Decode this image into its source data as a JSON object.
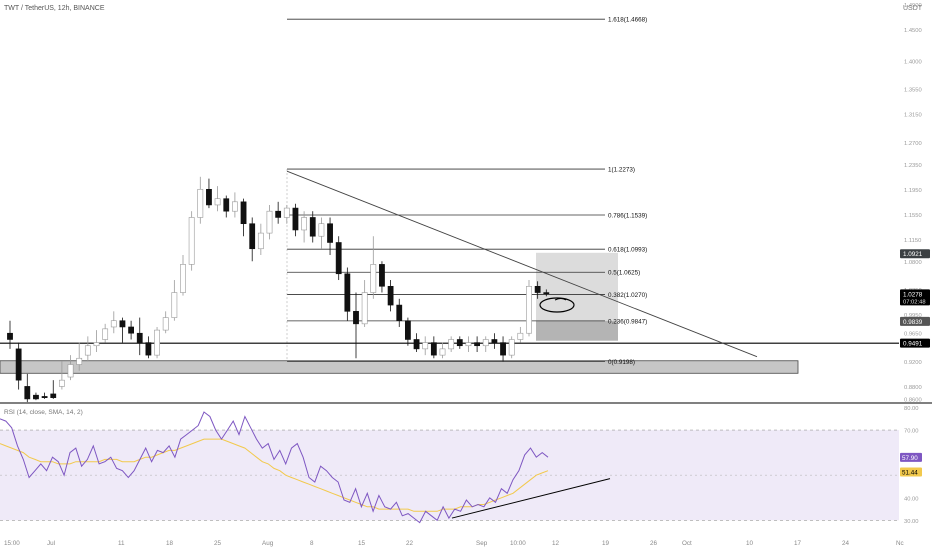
{
  "header": {
    "symbol_line": "TWT / TetherUS, 12h, BINANCE",
    "currency": "USDT"
  },
  "rsi_header": "RSI (14, close, SMA, 14, 2)",
  "time_axis": [
    "15:00",
    "Jul",
    "11",
    "18",
    "25",
    "Aug",
    "8",
    "15",
    "22",
    "Sep",
    "10:00",
    "12",
    "19",
    "26",
    "Oct",
    "10",
    "17",
    "24",
    "Nc"
  ],
  "chart_data": [
    {
      "type": "candlestick",
      "title": "TWT / TetherUS, 12h, BINANCE",
      "ylabel": "USDT",
      "ylim": [
        0.8535,
        1.4975
      ],
      "price_ticks": [
        "1.4900",
        "1.4500",
        "1.4000",
        "1.3550",
        "1.3150",
        "1.2700",
        "1.2350",
        "1.1950",
        "1.1550",
        "1.1150",
        "1.0800",
        "1.0350",
        "0.9950",
        "0.9650",
        "0.9200",
        "0.8800",
        "0.8600"
      ],
      "candles": [
        [
          0.965,
          0.985,
          0.955,
          0.94
        ],
        [
          0.94,
          0.95,
          0.89,
          0.875
        ],
        [
          0.88,
          0.9,
          0.86,
          0.855
        ],
        [
          0.866,
          0.87,
          0.86,
          0.858
        ],
        [
          0.864,
          0.87,
          0.862,
          0.86
        ],
        [
          0.868,
          0.89,
          0.862,
          0.86
        ],
        [
          0.88,
          0.92,
          0.89,
          0.875
        ],
        [
          0.895,
          0.93,
          0.915,
          0.89
        ],
        [
          0.915,
          0.95,
          0.925,
          0.905
        ],
        [
          0.93,
          0.96,
          0.945,
          0.92
        ],
        [
          0.945,
          0.97,
          0.95,
          0.935
        ],
        [
          0.955,
          0.98,
          0.972,
          0.95
        ],
        [
          0.975,
          1.0,
          0.985,
          0.965
        ],
        [
          0.985,
          0.99,
          0.975,
          0.95
        ],
        [
          0.975,
          0.985,
          0.965,
          0.955
        ],
        [
          0.965,
          0.99,
          0.95,
          0.93
        ],
        [
          0.95,
          0.96,
          0.93,
          0.925
        ],
        [
          0.93,
          0.975,
          0.97,
          0.925
        ],
        [
          0.97,
          1.0,
          0.99,
          0.965
        ],
        [
          0.99,
          1.05,
          1.03,
          0.985
        ],
        [
          1.03,
          1.09,
          1.075,
          1.025
        ],
        [
          1.075,
          1.16,
          1.15,
          1.065
        ],
        [
          1.15,
          1.215,
          1.195,
          1.14
        ],
        [
          1.195,
          1.212,
          1.17,
          1.165
        ],
        [
          1.17,
          1.2,
          1.18,
          1.16
        ],
        [
          1.18,
          1.185,
          1.16,
          1.15
        ],
        [
          1.16,
          1.19,
          1.175,
          1.15
        ],
        [
          1.175,
          1.18,
          1.14,
          1.12
        ],
        [
          1.14,
          1.15,
          1.1,
          1.08
        ],
        [
          1.1,
          1.14,
          1.125,
          1.09
        ],
        [
          1.125,
          1.17,
          1.16,
          1.115
        ],
        [
          1.16,
          1.175,
          1.15,
          1.14
        ],
        [
          1.15,
          1.17,
          1.165,
          1.14
        ],
        [
          1.165,
          1.172,
          1.13,
          1.12
        ],
        [
          1.13,
          1.16,
          1.15,
          1.11
        ],
        [
          1.15,
          1.16,
          1.12,
          1.11
        ],
        [
          1.12,
          1.15,
          1.14,
          1.1
        ],
        [
          1.14,
          1.15,
          1.11,
          1.09
        ],
        [
          1.11,
          1.12,
          1.06,
          1.05
        ],
        [
          1.06,
          1.07,
          1.0,
          0.985
        ],
        [
          1.0,
          1.03,
          0.98,
          0.925
        ],
        [
          0.98,
          1.05,
          1.03,
          0.975
        ],
        [
          1.03,
          1.12,
          1.075,
          1.02
        ],
        [
          1.075,
          1.08,
          1.04,
          1.03
        ],
        [
          1.04,
          1.05,
          1.01,
          1.0
        ],
        [
          1.01,
          1.02,
          0.985,
          0.975
        ],
        [
          0.985,
          0.99,
          0.955,
          0.945
        ],
        [
          0.955,
          0.965,
          0.94,
          0.935
        ],
        [
          0.94,
          0.96,
          0.95,
          0.93
        ],
        [
          0.95,
          0.96,
          0.93,
          0.925
        ],
        [
          0.93,
          0.95,
          0.94,
          0.925
        ],
        [
          0.94,
          0.96,
          0.955,
          0.935
        ],
        [
          0.955,
          0.96,
          0.945,
          0.94
        ],
        [
          0.945,
          0.96,
          0.95,
          0.935
        ],
        [
          0.95,
          0.96,
          0.945,
          0.935
        ],
        [
          0.945,
          0.96,
          0.955,
          0.935
        ],
        [
          0.955,
          0.965,
          0.95,
          0.94
        ],
        [
          0.95,
          0.96,
          0.93,
          0.92
        ],
        [
          0.93,
          0.96,
          0.955,
          0.925
        ],
        [
          0.955,
          0.975,
          0.965,
          0.95
        ],
        [
          0.965,
          1.05,
          1.04,
          0.96
        ],
        [
          1.04,
          1.048,
          1.03,
          1.02
        ],
        [
          1.03,
          1.035,
          1.028,
          1.024
        ]
      ],
      "fib_levels": [
        {
          "label": "1.618(1.4668)",
          "value": 1.4668
        },
        {
          "label": "1(1.2273)",
          "value": 1.2273
        },
        {
          "label": "0.786(1.1539)",
          "value": 1.1539
        },
        {
          "label": "0.618(1.0993)",
          "value": 1.0993
        },
        {
          "label": "0.5(1.0625)",
          "value": 1.0625
        },
        {
          "label": "0.382(1.0270)",
          "value": 1.027
        },
        {
          "label": "0.236(0.9847)",
          "value": 0.9847
        },
        {
          "label": "0(0.9198)",
          "value": 0.9198
        }
      ],
      "support_line": {
        "value": 0.9491
      },
      "support_zone": {
        "top": 0.921,
        "bottom": 0.901
      },
      "trendline": {
        "from": [
          14,
          1.22
        ],
        "to": [
          24,
          0.925
        ]
      },
      "position_box": {
        "target_top": 1.0935,
        "entry": 0.9847,
        "stop": 0.953
      },
      "price_tags": [
        {
          "id": "target",
          "text": "1.0921",
          "value": 1.0921,
          "color": "#3c4043"
        },
        {
          "id": "current",
          "text": "1.0278",
          "value": 1.0278,
          "color": "#000000",
          "subtext": "07:02:48"
        },
        {
          "id": "entry",
          "text": "0.9839",
          "value": 0.9839,
          "color": "#555555"
        },
        {
          "id": "support",
          "text": "0.9491",
          "value": 0.9491,
          "color": "#000000"
        }
      ],
      "grid": false
    },
    {
      "type": "line",
      "title": "RSI (14, close, SMA, 14, 2)",
      "ylim": [
        23.5,
        82
      ],
      "axis_ticks": [
        "80.00",
        "70.00",
        "40.00",
        "30.00"
      ],
      "bands": {
        "upper": 70,
        "middle": 50,
        "lower": 30
      },
      "series": [
        {
          "color": "#7e57c2",
          "values": [
            75,
            74,
            71,
            63,
            57,
            49,
            52,
            55,
            52,
            58,
            56,
            50,
            60,
            62,
            54,
            57,
            63,
            55,
            56,
            58,
            53,
            52,
            49,
            52,
            57,
            62,
            56,
            61,
            60,
            63,
            58,
            66,
            68,
            70,
            72,
            78,
            76,
            70,
            66,
            70,
            74,
            68,
            76,
            71,
            66,
            62,
            64,
            57,
            61,
            55,
            62,
            64,
            58,
            49,
            47,
            54,
            52,
            49,
            47,
            39,
            38,
            44,
            36,
            42,
            34,
            41,
            36,
            35,
            38,
            32,
            33,
            31,
            29,
            34,
            32,
            30,
            36,
            31,
            35,
            34,
            39,
            36,
            37,
            36,
            40,
            38,
            44,
            42,
            48,
            52,
            59,
            62,
            58,
            60,
            58
          ]
        },
        {
          "color": "#f2c94c",
          "values": [
            64,
            63,
            62,
            61,
            60,
            58,
            57,
            56,
            56,
            56,
            55,
            55,
            55,
            56,
            56,
            56,
            56,
            56,
            57,
            57,
            57,
            56,
            56,
            56,
            57,
            58,
            58,
            59,
            60,
            61,
            61,
            62,
            63,
            64,
            65,
            66,
            66,
            66,
            66,
            65,
            64,
            63,
            62,
            60,
            58,
            56,
            55,
            53,
            52,
            50,
            49,
            48,
            47,
            46,
            45,
            44,
            43,
            42,
            41,
            40,
            39,
            38,
            37,
            36,
            36,
            35,
            35,
            35,
            35,
            35,
            35,
            34,
            34,
            34,
            34,
            34,
            35,
            35,
            35,
            36,
            36,
            36,
            37,
            37,
            38,
            39,
            40,
            41,
            42,
            44,
            46,
            48,
            50,
            51,
            52
          ]
        }
      ],
      "trendline": {
        "from": [
          0.485,
          31
        ],
        "to": [
          0.655,
          48.5
        ]
      },
      "tags": [
        {
          "text": "57.90",
          "value": 57.9,
          "color": "#7e57c2"
        },
        {
          "text": "51.44",
          "value": 51.44,
          "color": "#f2c94c"
        }
      ]
    }
  ]
}
